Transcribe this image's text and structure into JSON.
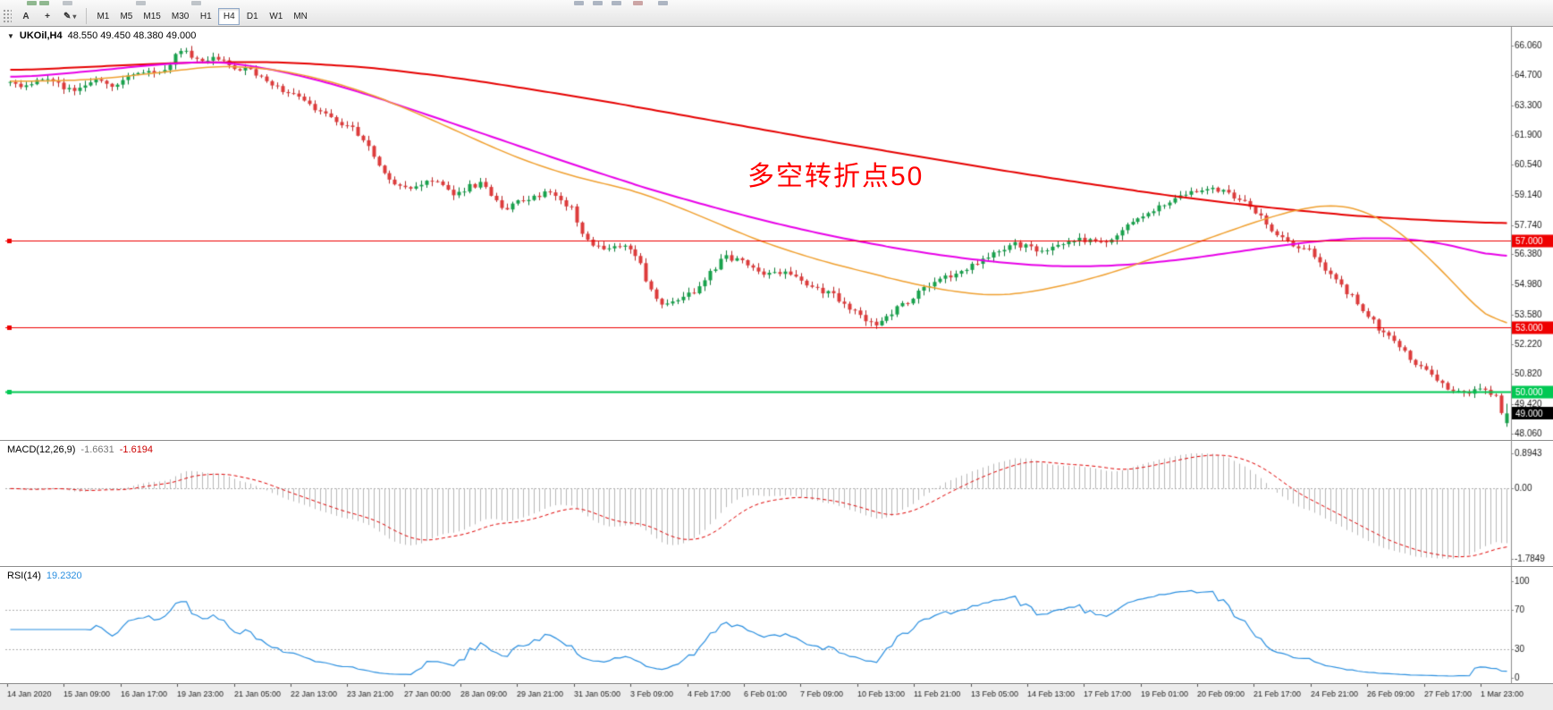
{
  "toolbar": {
    "text_tool_label": "A",
    "icons": {
      "crosshair": "+",
      "pencil": "✎",
      "dropdown": "▾",
      "symbol_marker": "▼"
    },
    "timeframes": [
      "M1",
      "M5",
      "M15",
      "M30",
      "H1",
      "H4",
      "D1",
      "W1",
      "MN"
    ],
    "active_timeframe": "H4"
  },
  "chart_data": {
    "type": "candlestick",
    "symbol": "UKOil,H4",
    "ohlc_text": "48.550 49.450 48.380 49.000",
    "ohlc_current": {
      "open": 48.55,
      "high": 49.45,
      "low": 48.38,
      "close": 49.0
    },
    "annotation": {
      "text": "多空转折点50",
      "color": "#ff0000"
    },
    "price_axis": {
      "labels": [
        "66.060",
        "64.700",
        "63.300",
        "61.900",
        "60.540",
        "59.140",
        "57.740",
        "56.380",
        "54.980",
        "53.580",
        "52.220",
        "50.820",
        "49.420",
        "48.060"
      ],
      "values": [
        66.06,
        64.7,
        63.3,
        61.9,
        60.54,
        59.14,
        57.74,
        56.38,
        54.98,
        53.58,
        52.22,
        50.82,
        49.42,
        48.06
      ]
    },
    "x_labels": [
      "14 Jan 2020",
      "15 Jan 09:00",
      "16 Jan 17:00",
      "19 Jan 23:00",
      "21 Jan 05:00",
      "22 Jan 13:00",
      "23 Jan 21:00",
      "27 Jan 00:00",
      "28 Jan 09:00",
      "29 Jan 21:00",
      "31 Jan 05:00",
      "3 Feb 09:00",
      "4 Feb 17:00",
      "6 Feb 01:00",
      "7 Feb 09:00",
      "10 Feb 13:00",
      "11 Feb 21:00",
      "13 Feb 05:00",
      "14 Feb 13:00",
      "17 Feb 17:00",
      "19 Feb 01:00",
      "20 Feb 09:00",
      "21 Feb 17:00",
      "24 Feb 21:00",
      "26 Feb 09:00",
      "27 Feb 17:00",
      "1 Mar 23:00"
    ],
    "hlines": [
      {
        "value": 57.0,
        "label": "57.000",
        "color": "#ee0000",
        "width": 1
      },
      {
        "value": 53.0,
        "label": "53.000",
        "color": "#ee0000",
        "width": 1
      },
      {
        "value": 50.0,
        "label": "50.000",
        "color": "#00c853",
        "width": 2
      }
    ],
    "current_price": {
      "value": 49.0,
      "label": "49.000",
      "bg": "#000000",
      "fg": "#ffffff"
    },
    "candles": {
      "count": 281,
      "up_fill": "#18a24c",
      "up_stroke": "#0b7a36",
      "down_fill": "#dd3b3b",
      "down_stroke": "#b82525",
      "path": [
        [
          0,
          64.35
        ],
        [
          0.012,
          64.1
        ],
        [
          0.02,
          64.55
        ],
        [
          0.03,
          64.3
        ],
        [
          0.042,
          63.95
        ],
        [
          0.055,
          64.5
        ],
        [
          0.068,
          64.25
        ],
        [
          0.08,
          64.6
        ],
        [
          0.092,
          64.85
        ],
        [
          0.1,
          64.7
        ],
        [
          0.108,
          65.3
        ],
        [
          0.115,
          66.0
        ],
        [
          0.122,
          65.55
        ],
        [
          0.13,
          65.35
        ],
        [
          0.14,
          65.45
        ],
        [
          0.15,
          65.05
        ],
        [
          0.16,
          64.9
        ],
        [
          0.17,
          64.55
        ],
        [
          0.18,
          64.1
        ],
        [
          0.19,
          63.75
        ],
        [
          0.2,
          63.3
        ],
        [
          0.21,
          62.95
        ],
        [
          0.22,
          62.5
        ],
        [
          0.23,
          62.1
        ],
        [
          0.24,
          61.4
        ],
        [
          0.248,
          60.3
        ],
        [
          0.255,
          59.85
        ],
        [
          0.262,
          59.5
        ],
        [
          0.27,
          59.35
        ],
        [
          0.278,
          59.9
        ],
        [
          0.285,
          59.75
        ],
        [
          0.293,
          59.3
        ],
        [
          0.3,
          59.15
        ],
        [
          0.308,
          59.55
        ],
        [
          0.315,
          59.65
        ],
        [
          0.322,
          59.0
        ],
        [
          0.33,
          58.45
        ],
        [
          0.338,
          58.8
        ],
        [
          0.345,
          58.85
        ],
        [
          0.353,
          59.15
        ],
        [
          0.36,
          59.25
        ],
        [
          0.368,
          58.9
        ],
        [
          0.375,
          58.55
        ],
        [
          0.382,
          57.4
        ],
        [
          0.39,
          56.7
        ],
        [
          0.398,
          56.55
        ],
        [
          0.405,
          56.9
        ],
        [
          0.412,
          56.65
        ],
        [
          0.42,
          56.15
        ],
        [
          0.427,
          54.9
        ],
        [
          0.433,
          54.25
        ],
        [
          0.44,
          54.05
        ],
        [
          0.447,
          54.3
        ],
        [
          0.455,
          54.55
        ],
        [
          0.462,
          55.0
        ],
        [
          0.47,
          55.7
        ],
        [
          0.478,
          56.3
        ],
        [
          0.487,
          56.1
        ],
        [
          0.495,
          55.7
        ],
        [
          0.503,
          55.35
        ],
        [
          0.512,
          55.55
        ],
        [
          0.52,
          55.45
        ],
        [
          0.53,
          55.1
        ],
        [
          0.54,
          54.75
        ],
        [
          0.55,
          54.5
        ],
        [
          0.56,
          53.95
        ],
        [
          0.57,
          53.4
        ],
        [
          0.578,
          53.15
        ],
        [
          0.585,
          53.5
        ],
        [
          0.593,
          53.9
        ],
        [
          0.6,
          54.2
        ],
        [
          0.61,
          54.8
        ],
        [
          0.62,
          55.2
        ],
        [
          0.63,
          55.45
        ],
        [
          0.64,
          55.75
        ],
        [
          0.65,
          56.2
        ],
        [
          0.66,
          56.55
        ],
        [
          0.67,
          56.85
        ],
        [
          0.68,
          56.7
        ],
        [
          0.69,
          56.55
        ],
        [
          0.7,
          56.9
        ],
        [
          0.71,
          57.1
        ],
        [
          0.72,
          57.0
        ],
        [
          0.73,
          56.85
        ],
        [
          0.74,
          57.35
        ],
        [
          0.75,
          57.8
        ],
        [
          0.76,
          58.35
        ],
        [
          0.77,
          58.7
        ],
        [
          0.78,
          59.0
        ],
        [
          0.79,
          59.25
        ],
        [
          0.8,
          59.5
        ],
        [
          0.808,
          59.35
        ],
        [
          0.816,
          59.1
        ],
        [
          0.825,
          58.85
        ],
        [
          0.833,
          58.3
        ],
        [
          0.84,
          57.75
        ],
        [
          0.848,
          57.1
        ],
        [
          0.856,
          56.9
        ],
        [
          0.865,
          56.65
        ],
        [
          0.872,
          56.3
        ],
        [
          0.88,
          55.6
        ],
        [
          0.888,
          55.0
        ],
        [
          0.895,
          54.5
        ],
        [
          0.905,
          53.7
        ],
        [
          0.915,
          52.9
        ],
        [
          0.925,
          52.25
        ],
        [
          0.935,
          51.6
        ],
        [
          0.945,
          51.0
        ],
        [
          0.952,
          50.55
        ],
        [
          0.96,
          50.2
        ],
        [
          0.968,
          49.95
        ],
        [
          0.976,
          50.05
        ],
        [
          0.984,
          50.15
        ],
        [
          0.988,
          50.0
        ],
        [
          0.993,
          49.9
        ],
        [
          0.997,
          48.9
        ],
        [
          1,
          49.0
        ]
      ]
    },
    "moving_averages": [
      {
        "name": "ma-slow-red",
        "color": "#e60000",
        "width": 2,
        "points": [
          [
            0,
            64.9
          ],
          [
            0.06,
            65.1
          ],
          [
            0.12,
            65.28
          ],
          [
            0.18,
            65.3
          ],
          [
            0.24,
            65.05
          ],
          [
            0.3,
            64.55
          ],
          [
            0.36,
            63.9
          ],
          [
            0.42,
            63.2
          ],
          [
            0.48,
            62.45
          ],
          [
            0.54,
            61.7
          ],
          [
            0.6,
            61.0
          ],
          [
            0.66,
            60.3
          ],
          [
            0.72,
            59.65
          ],
          [
            0.78,
            59.05
          ],
          [
            0.84,
            58.55
          ],
          [
            0.9,
            58.15
          ],
          [
            0.95,
            57.95
          ],
          [
            1,
            57.8
          ]
        ]
      },
      {
        "name": "ma-medium-magenta",
        "color": "#e800e8",
        "width": 2,
        "points": [
          [
            0,
            64.55
          ],
          [
            0.05,
            64.85
          ],
          [
            0.1,
            65.2
          ],
          [
            0.14,
            65.35
          ],
          [
            0.18,
            64.9
          ],
          [
            0.22,
            64.2
          ],
          [
            0.26,
            63.3
          ],
          [
            0.3,
            62.35
          ],
          [
            0.34,
            61.4
          ],
          [
            0.38,
            60.45
          ],
          [
            0.42,
            59.55
          ],
          [
            0.46,
            58.75
          ],
          [
            0.5,
            58.0
          ],
          [
            0.54,
            57.35
          ],
          [
            0.58,
            56.8
          ],
          [
            0.62,
            56.35
          ],
          [
            0.66,
            56.0
          ],
          [
            0.7,
            55.8
          ],
          [
            0.74,
            55.85
          ],
          [
            0.78,
            56.1
          ],
          [
            0.82,
            56.5
          ],
          [
            0.86,
            56.9
          ],
          [
            0.9,
            57.15
          ],
          [
            0.94,
            57.1
          ],
          [
            0.97,
            56.7
          ],
          [
            1,
            56.1
          ]
        ]
      },
      {
        "name": "ma-fast-orange",
        "color": "#f0a030",
        "width": 1.5,
        "points": [
          [
            0,
            64.4
          ],
          [
            0.05,
            64.45
          ],
          [
            0.1,
            64.8
          ],
          [
            0.14,
            65.15
          ],
          [
            0.18,
            64.95
          ],
          [
            0.22,
            64.3
          ],
          [
            0.26,
            63.3
          ],
          [
            0.3,
            62.05
          ],
          [
            0.34,
            60.8
          ],
          [
            0.38,
            59.9
          ],
          [
            0.42,
            59.3
          ],
          [
            0.46,
            58.2
          ],
          [
            0.5,
            57.0
          ],
          [
            0.54,
            56.1
          ],
          [
            0.58,
            55.4
          ],
          [
            0.62,
            54.75
          ],
          [
            0.66,
            54.4
          ],
          [
            0.7,
            54.85
          ],
          [
            0.74,
            55.6
          ],
          [
            0.78,
            56.6
          ],
          [
            0.82,
            57.6
          ],
          [
            0.85,
            58.3
          ],
          [
            0.88,
            58.75
          ],
          [
            0.9,
            58.6
          ],
          [
            0.92,
            57.9
          ],
          [
            0.94,
            56.8
          ],
          [
            0.96,
            55.4
          ],
          [
            0.98,
            53.9
          ],
          [
            1,
            52.4
          ]
        ]
      }
    ],
    "indicators": {
      "macd": {
        "label": "MACD(12,26,9)",
        "value_main": "-1.6631",
        "value_signal": "-1.6194",
        "fast": 12,
        "slow": 26,
        "signal": 9,
        "axis": [
          {
            "label": "0.8943",
            "value": 0.8943
          },
          {
            "label": "0.00",
            "value": 0
          },
          {
            "label": "-1.7849",
            "value": -1.7849
          }
        ],
        "histogram_color": "#b8b8b8",
        "signal_color": "#e00000"
      },
      "rsi": {
        "label": "RSI(14)",
        "value": "19.2320",
        "period": 14,
        "color": "#2a8fe0",
        "axis": [
          {
            "label": "100",
            "value": 100
          },
          {
            "label": "70",
            "value": 70
          },
          {
            "label": "30",
            "value": 30
          },
          {
            "label": "0",
            "value": 0
          }
        ],
        "levels": [
          70,
          30
        ]
      }
    }
  }
}
